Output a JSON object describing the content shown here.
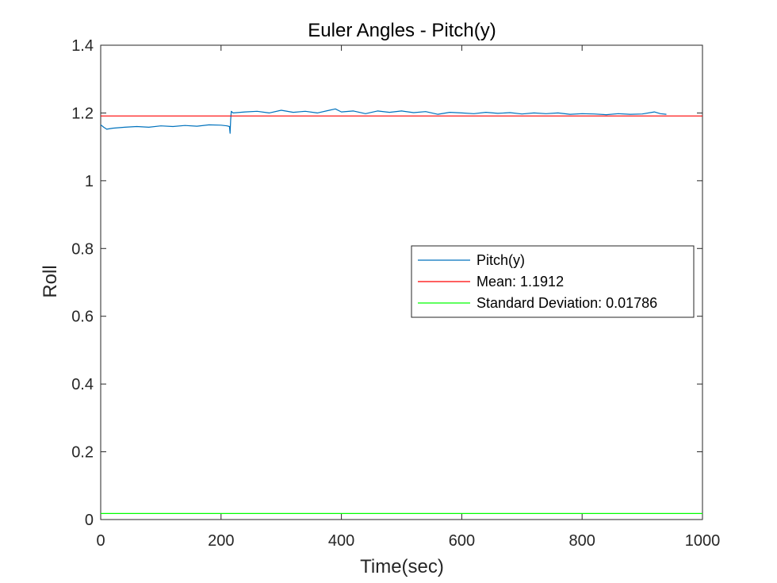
{
  "chart_data": {
    "type": "line",
    "title": "Euler Angles - Pitch(y)",
    "xlabel": "Time(sec)",
    "ylabel": "Roll",
    "xlim": [
      0,
      1000
    ],
    "ylim": [
      0,
      1.4
    ],
    "xticks": [
      0,
      200,
      400,
      600,
      800,
      1000
    ],
    "xtick_labels": [
      "0",
      "200",
      "400",
      "600",
      "800",
      "1000"
    ],
    "yticks": [
      0,
      0.2,
      0.4,
      0.6,
      0.8,
      1,
      1.2,
      1.4
    ],
    "ytick_labels": [
      "0",
      "0.2",
      "0.4",
      "0.6",
      "0.8",
      "1",
      "1.2",
      "1.4"
    ],
    "grid": false,
    "legend_position": "right-center",
    "series": [
      {
        "name": "Pitch(y)",
        "color": "#0072BD",
        "x": [
          0,
          5,
          10,
          20,
          40,
          60,
          80,
          100,
          120,
          140,
          160,
          180,
          200,
          210,
          214,
          215,
          216,
          217,
          220,
          240,
          260,
          280,
          300,
          320,
          340,
          360,
          380,
          390,
          400,
          420,
          440,
          460,
          480,
          500,
          520,
          540,
          560,
          580,
          600,
          620,
          640,
          660,
          680,
          700,
          720,
          740,
          760,
          780,
          800,
          820,
          840,
          860,
          880,
          900,
          920,
          930,
          940
        ],
        "y": [
          1.165,
          1.158,
          1.152,
          1.155,
          1.158,
          1.16,
          1.158,
          1.162,
          1.16,
          1.163,
          1.161,
          1.165,
          1.164,
          1.162,
          1.16,
          1.14,
          1.178,
          1.205,
          1.2,
          1.203,
          1.205,
          1.2,
          1.208,
          1.202,
          1.205,
          1.2,
          1.208,
          1.212,
          1.203,
          1.206,
          1.198,
          1.206,
          1.202,
          1.206,
          1.201,
          1.204,
          1.196,
          1.202,
          1.2,
          1.198,
          1.202,
          1.199,
          1.201,
          1.197,
          1.2,
          1.198,
          1.2,
          1.196,
          1.198,
          1.197,
          1.195,
          1.198,
          1.196,
          1.197,
          1.203,
          1.198,
          1.196
        ]
      },
      {
        "name": "Mean: 1.1912",
        "color": "#FF0000",
        "x": [
          0,
          1000
        ],
        "y": [
          1.1912,
          1.1912
        ]
      },
      {
        "name": "Standard Deviation: 0.01786",
        "color": "#00FF00",
        "x": [
          0,
          1000
        ],
        "y": [
          0.01786,
          0.01786
        ]
      }
    ]
  }
}
